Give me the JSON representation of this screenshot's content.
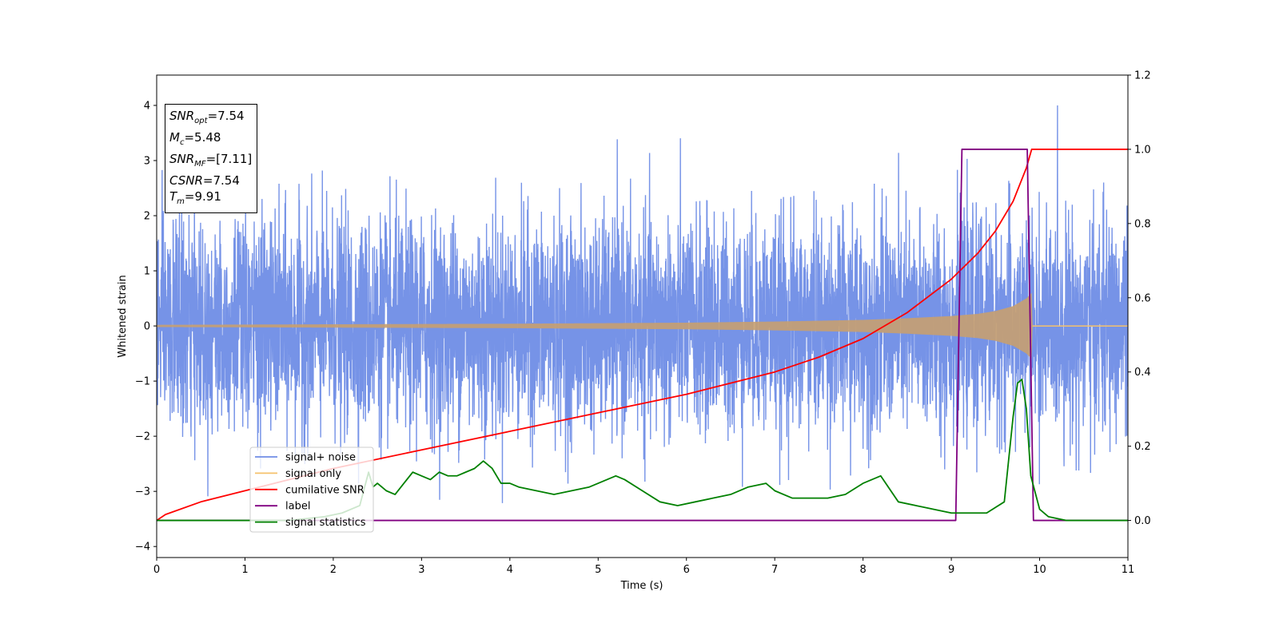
{
  "chart_data": {
    "type": "line",
    "xlabel": "Time (s)",
    "ylabel": "Whitened strain",
    "xlim": [
      0,
      11
    ],
    "ylim": [
      -4.2,
      4.55
    ],
    "y2lim": [
      -0.1,
      1.2
    ],
    "xticks": [
      "0",
      "1",
      "2",
      "3",
      "4",
      "5",
      "6",
      "7",
      "8",
      "9",
      "10",
      "11"
    ],
    "yticks": [
      "−4",
      "−3",
      "−2",
      "−1",
      "0",
      "1",
      "2",
      "3",
      "4"
    ],
    "y2ticks": [
      "0.0",
      "0.2",
      "0.4",
      "0.6",
      "0.8",
      "1.0",
      "1.2"
    ],
    "grid": false,
    "legend_position": "lower-left",
    "annotations": {
      "snr_opt": {
        "label": "SNR",
        "sub": "opt",
        "value": "=7.54"
      },
      "mc": {
        "label": "M",
        "sub": "c",
        "value": "=5.48"
      },
      "snr_mf": {
        "label": "SNR",
        "sub": "MF",
        "value": "=[7.11]"
      },
      "csnr": {
        "label": "CSNR",
        "value": "=7.54"
      },
      "tm": {
        "label": "T",
        "sub": "m",
        "value": "=9.91"
      }
    },
    "series": [
      {
        "name": "signal+ noise",
        "color": "#6f8de6",
        "axis": "left",
        "description": "noisy whitened strain, spans roughly -3.8 to 4.0",
        "x_range": [
          0,
          11
        ],
        "noise_std": 0.95,
        "max": 4.0,
        "min": -3.8
      },
      {
        "name": "signal only",
        "color": "#f5c26b",
        "axis": "left",
        "envelope": {
          "x": [
            0,
            2,
            4,
            6,
            7,
            8,
            8.5,
            9,
            9.3,
            9.5,
            9.7,
            9.85,
            9.91,
            9.92,
            11
          ],
          "amp": [
            0.02,
            0.03,
            0.04,
            0.06,
            0.08,
            0.11,
            0.14,
            0.18,
            0.22,
            0.27,
            0.36,
            0.5,
            0.6,
            0.0,
            0.0
          ]
        }
      },
      {
        "name": "cumilative SNR",
        "color": "#ff0000",
        "axis": "right",
        "x": [
          0,
          0.1,
          0.5,
          1,
          2,
          3,
          4,
          5,
          6,
          7,
          7.5,
          8,
          8.5,
          9,
          9.3,
          9.5,
          9.7,
          9.85,
          9.91,
          11
        ],
        "y": [
          0.0,
          0.016,
          0.05,
          0.08,
          0.14,
          0.19,
          0.24,
          0.29,
          0.34,
          0.4,
          0.44,
          0.49,
          0.56,
          0.65,
          0.72,
          0.78,
          0.86,
          0.95,
          1.0,
          1.0
        ]
      },
      {
        "name": "label",
        "color": "#800080",
        "axis": "right",
        "x": [
          0,
          9.05,
          9.12,
          9.86,
          9.93,
          11
        ],
        "y": [
          0,
          0,
          1,
          1,
          0,
          0
        ]
      },
      {
        "name": "signal statistics",
        "color": "#008000",
        "axis": "right",
        "x": [
          0,
          1.5,
          1.9,
          2.1,
          2.3,
          2.4,
          2.45,
          2.5,
          2.6,
          2.7,
          2.8,
          2.9,
          3.0,
          3.1,
          3.2,
          3.3,
          3.4,
          3.5,
          3.6,
          3.7,
          3.8,
          3.9,
          4.0,
          4.1,
          4.3,
          4.5,
          4.7,
          4.9,
          5.1,
          5.2,
          5.3,
          5.5,
          5.7,
          5.9,
          6.1,
          6.3,
          6.5,
          6.7,
          6.9,
          7.0,
          7.2,
          7.4,
          7.6,
          7.8,
          8.0,
          8.2,
          8.4,
          8.6,
          8.8,
          9.0,
          9.2,
          9.4,
          9.6,
          9.7,
          9.75,
          9.8,
          9.85,
          9.9,
          10.0,
          10.1,
          10.3,
          11
        ],
        "y": [
          0.0,
          0.0,
          0.01,
          0.02,
          0.04,
          0.13,
          0.09,
          0.1,
          0.08,
          0.07,
          0.1,
          0.13,
          0.12,
          0.11,
          0.13,
          0.12,
          0.12,
          0.13,
          0.14,
          0.16,
          0.14,
          0.1,
          0.1,
          0.09,
          0.08,
          0.07,
          0.08,
          0.09,
          0.11,
          0.12,
          0.11,
          0.08,
          0.05,
          0.04,
          0.05,
          0.06,
          0.07,
          0.09,
          0.1,
          0.08,
          0.06,
          0.06,
          0.06,
          0.07,
          0.1,
          0.12,
          0.05,
          0.04,
          0.03,
          0.02,
          0.02,
          0.02,
          0.05,
          0.28,
          0.37,
          0.38,
          0.3,
          0.12,
          0.03,
          0.01,
          0.0,
          0.0
        ]
      }
    ]
  }
}
